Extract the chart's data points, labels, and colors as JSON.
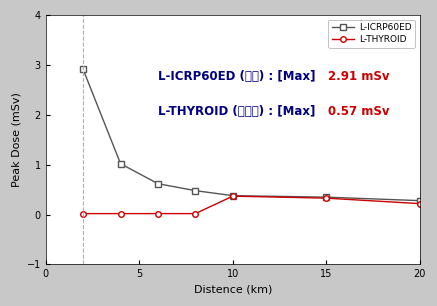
{
  "icrp_x": [
    2,
    4,
    6,
    8,
    10,
    15,
    20
  ],
  "icrp_y": [
    2.91,
    1.02,
    0.62,
    0.48,
    0.38,
    0.35,
    0.28
  ],
  "thyroid_x": [
    2,
    4,
    6,
    8,
    10,
    15,
    20
  ],
  "thyroid_y": [
    0.02,
    0.02,
    0.02,
    0.02,
    0.37,
    0.33,
    0.22
  ],
  "vline_x": 2,
  "vline_color": "#E8A070",
  "icrp_color": "#555555",
  "thyroid_color": "#CC0000",
  "annotation_color_label": "#000080",
  "annotation_color_val": "#CC0000",
  "xlabel": "Distence (km)",
  "ylabel": "Peak Dose (mSv)",
  "xlim": [
    0,
    20
  ],
  "ylim": [
    -1,
    4
  ],
  "xticks": [
    0,
    5,
    10,
    15,
    20
  ],
  "yticks": [
    -1,
    0,
    1,
    2,
    3,
    4
  ],
  "legend_icrp": "L-ICRP60ED",
  "legend_thyroid": "L-THYROID",
  "figsize": [
    4.37,
    3.06
  ],
  "dpi": 100,
  "annotation_fontsize": 8.5,
  "bg_color": "#ffffff",
  "fig_bg": "#c8c8c8"
}
